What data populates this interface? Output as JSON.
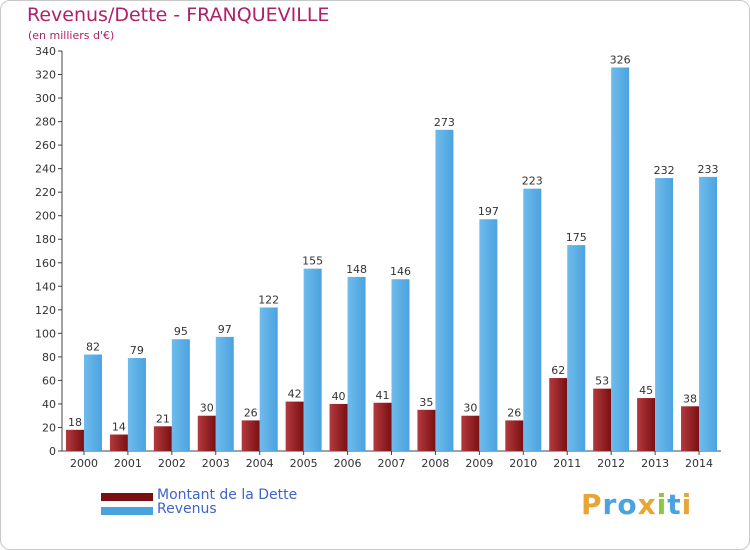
{
  "header": {
    "title": "Revenus/Dette - FRANQUEVILLE",
    "subtitle": "(en milliers d'€)"
  },
  "legend": {
    "dette_label": "Montant de la Dette",
    "revenus_label": "Revenus"
  },
  "logo": {
    "text": "Proxiti",
    "letters": [
      "P",
      "r",
      "o",
      "x",
      "i",
      "t",
      "i"
    ],
    "colors": [
      "#e8a534",
      "#4aa3df",
      "#4aa3df",
      "#e8a534",
      "#8dc63f",
      "#4aa3df",
      "#e8a534"
    ]
  },
  "colors": {
    "dette": "#7a0f12",
    "dette_light": "#b33a3e",
    "revenus": "#4aa3df",
    "revenus_light": "#6fbbec",
    "axis": "#444444",
    "grid": "#dddddd",
    "title": "#b01f6a"
  },
  "chart_data": {
    "type": "bar",
    "title": "Revenus/Dette - FRANQUEVILLE",
    "subtitle": "(en milliers d'€)",
    "xlabel": "",
    "ylabel": "",
    "ylim": [
      0,
      340
    ],
    "ytick_step": 20,
    "grid": false,
    "legend_position": "bottom-left",
    "categories": [
      "2000",
      "2001",
      "2002",
      "2003",
      "2004",
      "2005",
      "2006",
      "2007",
      "2008",
      "2009",
      "2010",
      "2011",
      "2012",
      "2013",
      "2014"
    ],
    "series": [
      {
        "name": "Montant de la Dette",
        "values": [
          18,
          14,
          21,
          30,
          26,
          42,
          40,
          41,
          35,
          30,
          26,
          62,
          53,
          45,
          38
        ]
      },
      {
        "name": "Revenus",
        "values": [
          82,
          79,
          95,
          97,
          122,
          155,
          148,
          146,
          273,
          197,
          223,
          175,
          326,
          232,
          233
        ]
      }
    ]
  }
}
